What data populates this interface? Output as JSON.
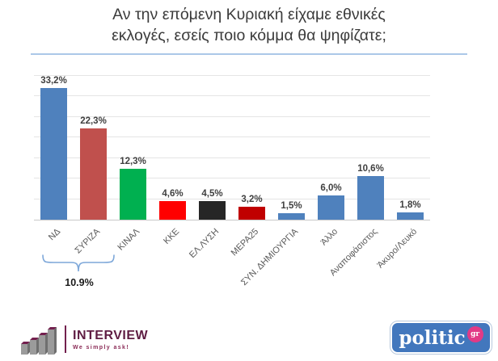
{
  "title": {
    "line1": "Αν την επόμενη Κυριακή είχαμε εθνικές",
    "line2": "εκλογές, εσείς ποιο κόμμα θα ψηφίζατε;"
  },
  "chart_data": {
    "type": "bar",
    "title": "Αν την επόμενη Κυριακή είχαμε εθνικές εκλογές, εσείς ποιο κόμμα θα ψηφίζατε;",
    "categories": [
      "ΝΔ",
      "ΣΥΡΙΖΑ",
      "ΚΙΝΑΛ",
      "ΚΚΕ",
      "ΕΛ.ΛΥΣΗ",
      "ΜΕΡΑ25",
      "ΣΥΝ. ΔΗΜΙΟΥΡΓΙΑ",
      "Άλλο",
      "Αναποφάσιστος",
      "Άκυρο/Λευκό"
    ],
    "values": [
      33.2,
      22.3,
      12.3,
      4.6,
      4.5,
      3.2,
      1.5,
      6.0,
      10.6,
      1.8
    ],
    "value_labels": [
      "33,2%",
      "22,3%",
      "12,3%",
      "4,6%",
      "4,5%",
      "3,2%",
      "1,5%",
      "6,0%",
      "10,6%",
      "1,8%"
    ],
    "colors": [
      "#4f81bd",
      "#c0504d",
      "#00b050",
      "#ff0000",
      "#262626",
      "#c00000",
      "#4f81bd",
      "#4f81bd",
      "#4f81bd",
      "#4f81bd"
    ],
    "xlabel": "",
    "ylabel": "",
    "ylim": [
      0,
      35
    ],
    "grid_step": 5,
    "grid": true,
    "legend": "none",
    "annotation": {
      "bracket_label": "10.9%",
      "bracket_span": [
        "ΝΔ",
        "ΣΥΡΙΖΑ"
      ]
    }
  },
  "annotation": {
    "bracket_label": "10.9%"
  },
  "footer": {
    "interview": {
      "name": "INTERVIEW",
      "tagline": "We simply ask!"
    },
    "politic": {
      "name": "politic",
      "suffix": "gr"
    }
  },
  "colors": {
    "accent_underline": "#abc8e8",
    "bracket": "#7da7d9",
    "interview_maroon": "#73204e",
    "politic_blue": "#4277bd",
    "politic_pink": "#e23a86"
  }
}
